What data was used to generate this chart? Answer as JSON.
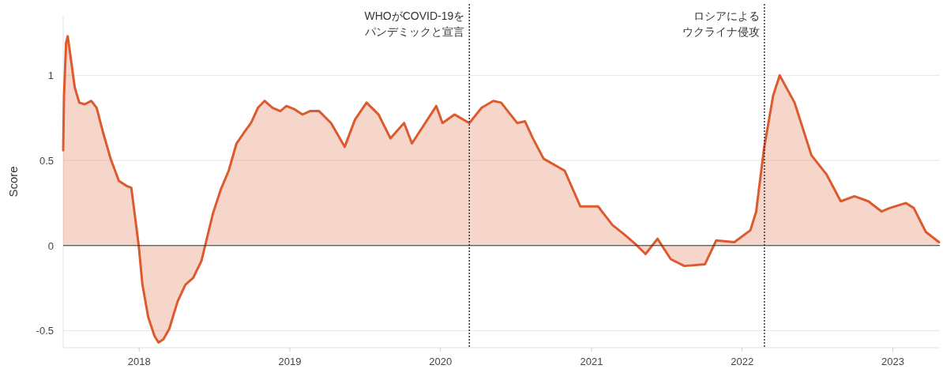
{
  "chart_data": {
    "type": "area",
    "ylabel": "Score",
    "grid": "y",
    "xlim": [
      "2017-07-01",
      "2023-04-25"
    ],
    "ylim": [
      -0.6,
      1.35
    ],
    "xticks": [
      {
        "value": "2018-01-01",
        "label": "2018"
      },
      {
        "value": "2019-01-01",
        "label": "2019"
      },
      {
        "value": "2020-01-01",
        "label": "2020"
      },
      {
        "value": "2021-01-01",
        "label": "2021"
      },
      {
        "value": "2022-01-01",
        "label": "2022"
      },
      {
        "value": "2023-01-01",
        "label": "2023"
      }
    ],
    "yticks": [
      -0.5,
      0,
      0.5,
      1
    ],
    "ref_lines": [
      {
        "axis": "x",
        "value": "2020-03-11",
        "label": [
          "WHOがCOVID-19を",
          "パンデミックと宣言"
        ],
        "color": "#333333",
        "line_style": "dotted"
      },
      {
        "axis": "x",
        "value": "2022-02-24",
        "label": [
          "ロシアによる",
          "ウクライナ侵攻"
        ],
        "color": "#333333",
        "line_style": "dotted"
      }
    ],
    "series": [
      {
        "color": "#dd5a2e",
        "x": [
          "2017-07-01",
          "2017-07-03",
          "2017-07-08",
          "2017-07-12",
          "2017-07-20",
          "2017-07-29",
          "2017-08-09",
          "2017-08-22",
          "2017-09-07",
          "2017-09-20",
          "2017-10-05",
          "2017-10-24",
          "2017-11-13",
          "2017-12-02",
          "2017-12-13",
          "2017-12-21",
          "2017-12-31",
          "2018-01-09",
          "2018-01-23",
          "2018-02-07",
          "2018-02-17",
          "2018-03-01",
          "2018-03-15",
          "2018-04-04",
          "2018-04-23",
          "2018-05-12",
          "2018-06-01",
          "2018-06-10",
          "2018-06-29",
          "2018-07-18",
          "2018-08-06",
          "2018-08-25",
          "2018-09-14",
          "2018-09-29",
          "2018-10-16",
          "2018-11-01",
          "2018-11-20",
          "2018-12-09",
          "2018-12-24",
          "2019-01-13",
          "2019-02-01",
          "2019-02-19",
          "2019-03-13",
          "2019-04-11",
          "2019-05-14",
          "2019-06-08",
          "2019-07-06",
          "2019-08-04",
          "2019-09-02",
          "2019-10-05",
          "2019-10-24",
          "2019-12-22",
          "2020-01-06",
          "2020-02-04",
          "2020-03-11",
          "2020-04-10",
          "2020-05-08",
          "2020-05-27",
          "2020-07-05",
          "2020-07-24",
          "2020-08-12",
          "2020-09-07",
          "2020-10-28",
          "2020-12-05",
          "2021-01-17",
          "2021-02-21",
          "2021-03-19",
          "2021-04-17",
          "2021-05-12",
          "2021-06-10",
          "2021-07-12",
          "2021-08-14",
          "2021-10-03",
          "2021-10-30",
          "2021-12-13",
          "2022-01-21",
          "2022-02-04",
          "2022-02-23",
          "2022-03-17",
          "2022-04-02",
          "2022-05-08",
          "2022-06-18",
          "2022-07-24",
          "2022-08-28",
          "2022-09-30",
          "2022-11-03",
          "2022-12-05",
          "2022-12-24",
          "2023-02-02",
          "2023-02-21",
          "2023-03-22",
          "2023-04-23"
        ],
        "values": [
          0.56,
          0.88,
          1.19,
          1.23,
          1.09,
          0.93,
          0.84,
          0.83,
          0.85,
          0.81,
          0.67,
          0.51,
          0.38,
          0.35,
          0.34,
          0.19,
          0,
          -0.23,
          -0.42,
          -0.53,
          -0.57,
          -0.55,
          -0.49,
          -0.33,
          -0.23,
          -0.19,
          -0.09,
          0,
          0.19,
          0.33,
          0.44,
          0.6,
          0.67,
          0.72,
          0.81,
          0.85,
          0.81,
          0.79,
          0.82,
          0.8,
          0.77,
          0.79,
          0.79,
          0.72,
          0.58,
          0.74,
          0.84,
          0.77,
          0.63,
          0.72,
          0.6,
          0.82,
          0.72,
          0.77,
          0.72,
          0.81,
          0.85,
          0.84,
          0.72,
          0.73,
          0.63,
          0.51,
          0.44,
          0.23,
          0.23,
          0.12,
          0.07,
          0.01,
          -0.05,
          0.04,
          -0.08,
          -0.12,
          -0.11,
          0.03,
          0.02,
          0.09,
          0.2,
          0.57,
          0.88,
          1.0,
          0.84,
          0.53,
          0.42,
          0.26,
          0.29,
          0.26,
          0.2,
          0.22,
          0.25,
          0.22,
          0.08,
          0.02
        ]
      }
    ]
  }
}
